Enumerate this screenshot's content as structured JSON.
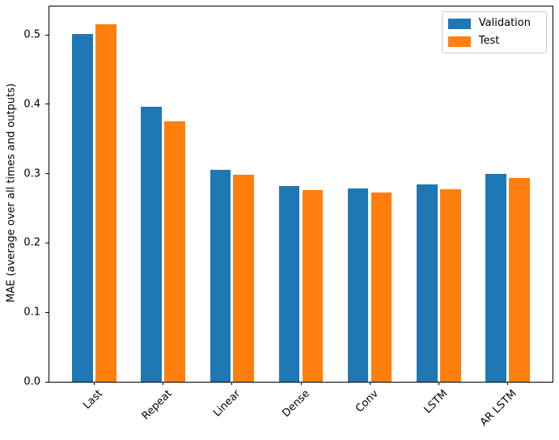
{
  "chart_data": {
    "type": "bar",
    "title": "",
    "xlabel": "",
    "ylabel": "MAE (average over all times and outputs)",
    "categories": [
      "Last",
      "Repeat",
      "Linear",
      "Dense",
      "Conv",
      "LSTM",
      "AR LSTM"
    ],
    "series": [
      {
        "name": "Validation",
        "color": "#1f77b4",
        "values": [
          0.501,
          0.396,
          0.305,
          0.282,
          0.279,
          0.284,
          0.3
        ]
      },
      {
        "name": "Test",
        "color": "#ff7f0e",
        "values": [
          0.515,
          0.376,
          0.298,
          0.276,
          0.273,
          0.277,
          0.294
        ]
      }
    ],
    "ylim": [
      0,
      0.541
    ],
    "yticks": [
      {
        "value": 0.0,
        "label": "0.0"
      },
      {
        "value": 0.1,
        "label": "0.1"
      },
      {
        "value": 0.2,
        "label": "0.2"
      },
      {
        "value": 0.3,
        "label": "0.3"
      },
      {
        "value": 0.4,
        "label": "0.4"
      },
      {
        "value": 0.5,
        "label": "0.5"
      }
    ],
    "bar_width": 0.3,
    "bar_offsets": [
      -0.17,
      0.17
    ],
    "x_margin": 0.65,
    "xtick_rotation_deg": 45,
    "legend": {
      "location": "upper right",
      "entries": [
        "Validation",
        "Test"
      ]
    },
    "grid": false,
    "colors": {
      "background": "#ffffff",
      "axis": "#000000",
      "legend_border": "#cccccc"
    }
  }
}
